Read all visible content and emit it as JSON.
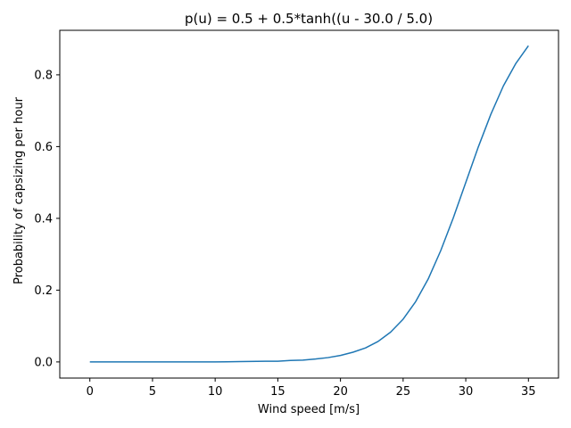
{
  "chart_data": {
    "type": "line",
    "title": "p(u) = 0.5 + 0.5*tanh((u - 30.0 / 5.0)",
    "xlabel": "Wind speed  [m/s]",
    "ylabel": "Probability of capsizing per hour",
    "xlim": [
      -2.4,
      37.4
    ],
    "ylim": [
      -0.045,
      0.924
    ],
    "xticks": [
      0,
      5,
      10,
      15,
      20,
      25,
      30,
      35
    ],
    "xtick_labels": [
      "0",
      "5",
      "10",
      "15",
      "20",
      "25",
      "30",
      "35"
    ],
    "yticks": [
      0.0,
      0.2,
      0.4,
      0.6,
      0.8
    ],
    "ytick_labels": [
      "0.0",
      "0.2",
      "0.4",
      "0.6",
      "0.8"
    ],
    "grid": false,
    "series": [
      {
        "color": "#1f77b4",
        "x": [
          0,
          2,
          4,
          6,
          8,
          10,
          12,
          14,
          15,
          16,
          17,
          18,
          19,
          20,
          21,
          22,
          23,
          24,
          25,
          26,
          27,
          28,
          29,
          30,
          31,
          32,
          33,
          34,
          35
        ],
        "y": [
          0.0,
          0.0,
          0.0,
          0.0,
          0.0,
          0.0,
          0.001,
          0.002,
          0.002,
          0.004,
          0.005,
          0.008,
          0.012,
          0.018,
          0.027,
          0.039,
          0.057,
          0.083,
          0.119,
          0.168,
          0.231,
          0.31,
          0.401,
          0.5,
          0.599,
          0.69,
          0.769,
          0.832,
          0.881
        ]
      }
    ]
  }
}
